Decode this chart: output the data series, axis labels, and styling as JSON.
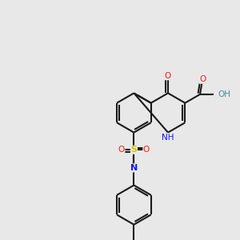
{
  "bg_color": "#e8e8e8",
  "bond_color": "#1a1a1a",
  "nitrogen_color": "#1414ff",
  "oxygen_color": "#ff1414",
  "sulfur_color": "#cccc00",
  "teal_color": "#4a9090",
  "lw": 1.5,
  "figsize": [
    3.0,
    3.0
  ],
  "dpi": 100,
  "xlim": [
    0,
    10
  ],
  "ylim": [
    0,
    10
  ]
}
